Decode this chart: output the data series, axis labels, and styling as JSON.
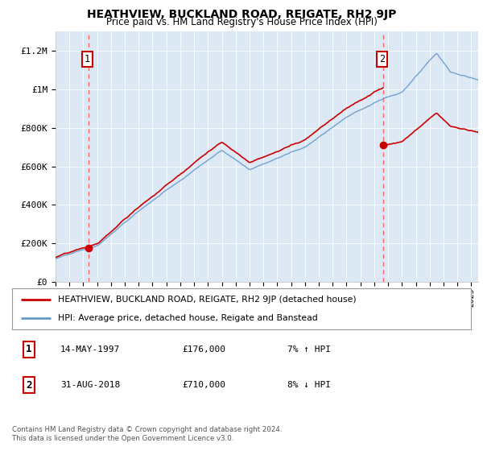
{
  "title": "HEATHVIEW, BUCKLAND ROAD, REIGATE, RH2 9JP",
  "subtitle": "Price paid vs. HM Land Registry's House Price Index (HPI)",
  "legend_line1": "HEATHVIEW, BUCKLAND ROAD, REIGATE, RH2 9JP (detached house)",
  "legend_line2": "HPI: Average price, detached house, Reigate and Banstead",
  "transaction1_date": "14-MAY-1997",
  "transaction1_price": "£176,000",
  "transaction1_hpi": "7% ↑ HPI",
  "transaction2_date": "31-AUG-2018",
  "transaction2_price": "£710,000",
  "transaction2_hpi": "8% ↓ HPI",
  "footer": "Contains HM Land Registry data © Crown copyright and database right 2024.\nThis data is licensed under the Open Government Licence v3.0.",
  "bg_color": "#dce9f5",
  "outer_bg_color": "#ffffff",
  "red_line_color": "#cc0000",
  "blue_line_color": "#6699cc",
  "dashed_line_color": "#ff6666",
  "marker_color": "#cc0000",
  "ylim_min": 0,
  "ylim_max": 1300000,
  "transaction1_x": 1997.37,
  "transaction1_y": 176000,
  "transaction2_x": 2018.66,
  "transaction2_y": 710000,
  "xmin": 1995,
  "xmax": 2025.5,
  "yticks": [
    0,
    200000,
    400000,
    600000,
    800000,
    1000000,
    1200000
  ],
  "ytick_labels": [
    "£0",
    "£200K",
    "£400K",
    "£600K",
    "£800K",
    "£1M",
    "£1.2M"
  ]
}
